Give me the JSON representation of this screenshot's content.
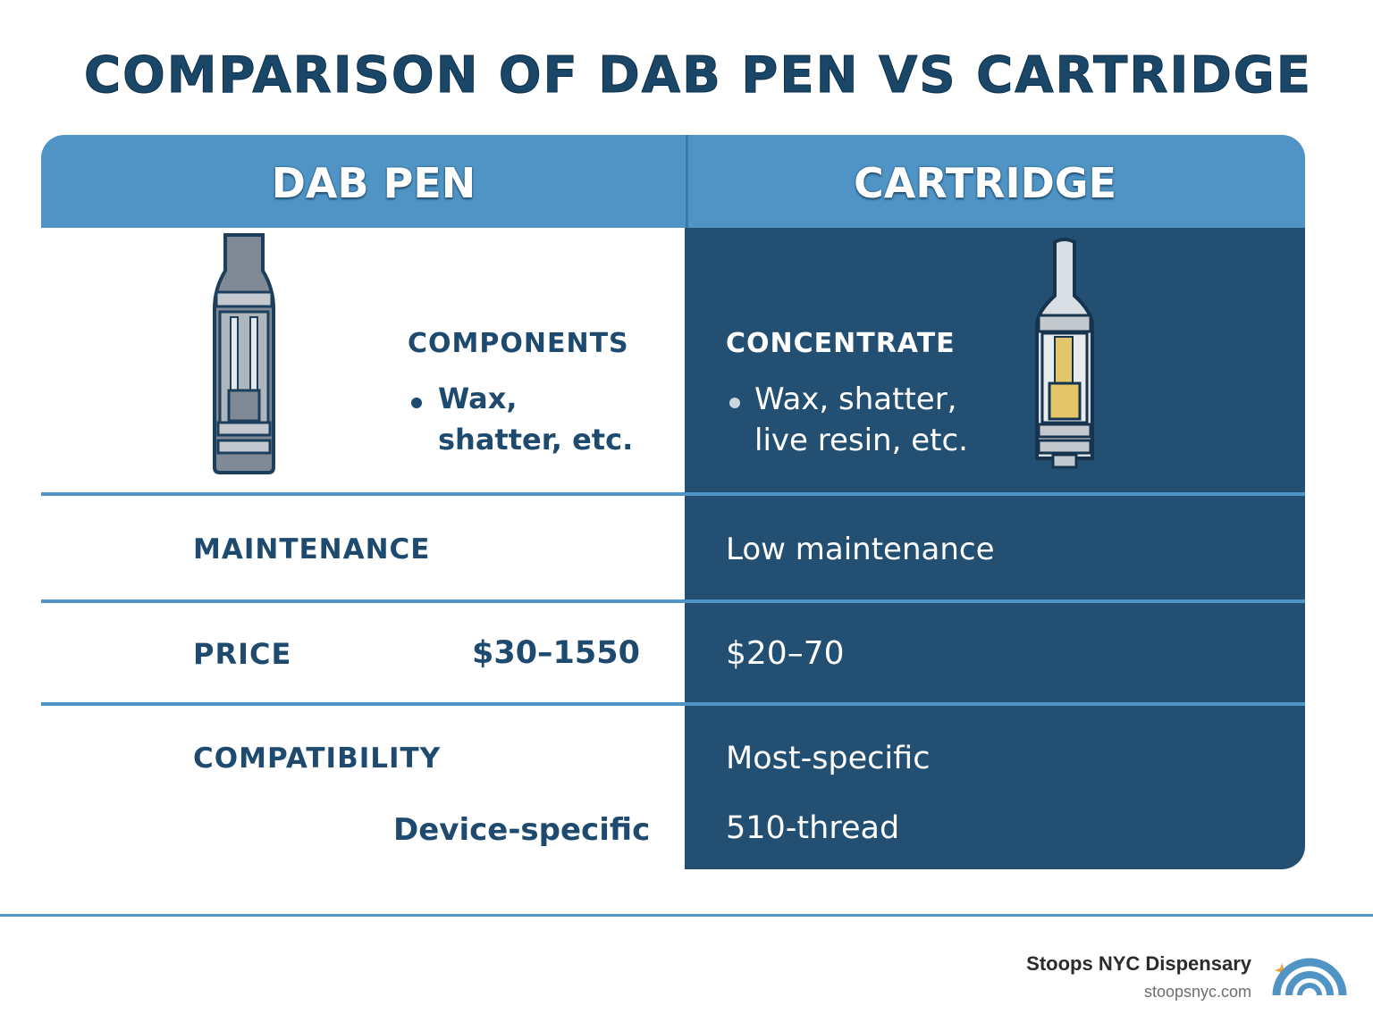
{
  "title": "COMPARISON OF DAB PEN VS CARTRIDGE",
  "columns": {
    "left": "DAB PEN",
    "right": "CARTRIDGE"
  },
  "row1": {
    "left_heading": "COMPONENTS",
    "left_bullet_line1": "Wax,",
    "left_bullet_line2": "shatter, etc.",
    "right_heading": "CONCENTRATE",
    "right_bullet_line1": "Wax, shatter,",
    "right_bullet_line2": "live resin, etc."
  },
  "row2": {
    "label": "MAINTENANCE",
    "right_value": "Low maintenance"
  },
  "row3": {
    "label": "PRICE",
    "left_value": "$30–1550",
    "right_value": "$20–70"
  },
  "row4": {
    "label": "COMPATIBILITY",
    "left_value": "Device-specific",
    "right_value_line1": "Most-specific",
    "right_value_line2": "510-thread"
  },
  "footer": {
    "brand": "Stoops NYC Dispensary",
    "url": "stoopsnyc.com"
  },
  "colors": {
    "header_blue": "#4f94c4",
    "dark_navy": "#234f72",
    "text_navy": "#1d4a6e",
    "oil_gold": "#e3c56a"
  },
  "icons": [
    "dab-pen-icon",
    "cartridge-icon",
    "rainbow-logo-icon"
  ]
}
